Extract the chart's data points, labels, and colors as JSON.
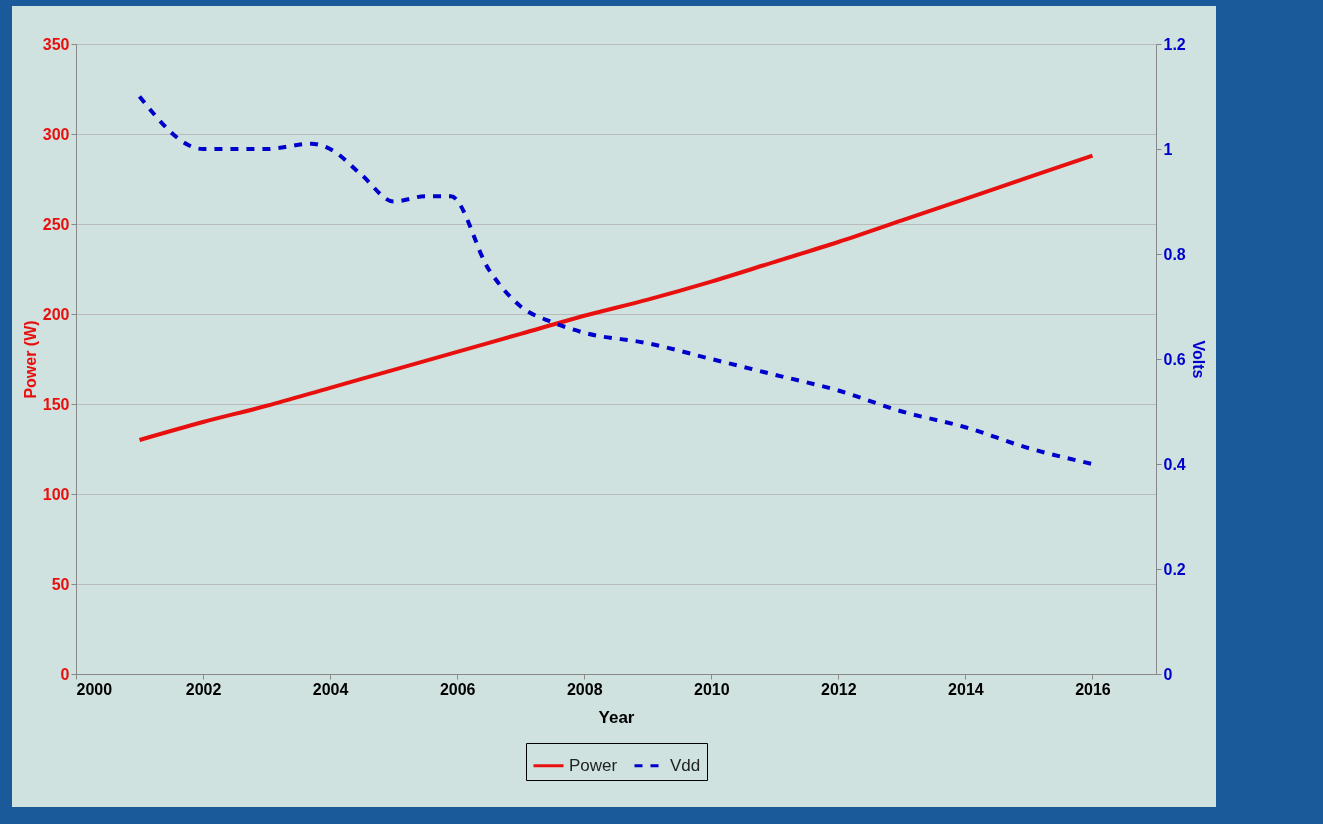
{
  "chart_data": {
    "type": "line",
    "xlabel": "Year",
    "ylabel": "Power (W)",
    "y2label": "Volts",
    "xlim": [
      2000,
      2017
    ],
    "xticks": [
      2000,
      2002,
      2004,
      2006,
      2008,
      2010,
      2012,
      2014,
      2016
    ],
    "ylim": [
      0,
      350
    ],
    "yticks": [
      0,
      50,
      100,
      150,
      200,
      250,
      300,
      350
    ],
    "y2lim": [
      0,
      1.2
    ],
    "y2ticks": [
      0,
      0.2,
      0.4,
      0.6,
      0.8,
      1,
      1.2
    ],
    "grid": "y",
    "legend": "bottom",
    "series": [
      {
        "name": "Power",
        "color": "#e8100e",
        "line_style": "solid",
        "x": [
          2001,
          2002,
          2003,
          2004,
          2005,
          2006,
          2007,
          2008,
          2009,
          2010,
          2011,
          2012,
          2013,
          2014,
          2015,
          2016
        ],
        "values": [
          130,
          140,
          149,
          159,
          169,
          179,
          189,
          199,
          208,
          218,
          229,
          240,
          252,
          264,
          276,
          288
        ]
      },
      {
        "name": "Vdd",
        "color": "#0000cc",
        "line_style": "dashed",
        "axis": "y2",
        "x": [
          2001,
          2002,
          2003,
          2003.7,
          2004,
          2004.5,
          2005,
          2005.5,
          2005.9,
          2006.5,
          2007,
          2007.5,
          2008,
          2009,
          2010,
          2011,
          2012,
          2013,
          2014,
          2015,
          2016
        ],
        "values": [
          1.1,
          1.0,
          1.0,
          1.01,
          1.0,
          0.95,
          0.9,
          0.91,
          0.91,
          0.77,
          0.7,
          0.67,
          0.65,
          0.63,
          0.6,
          0.57,
          0.54,
          0.5,
          0.47,
          0.43,
          0.4
        ]
      }
    ]
  }
}
